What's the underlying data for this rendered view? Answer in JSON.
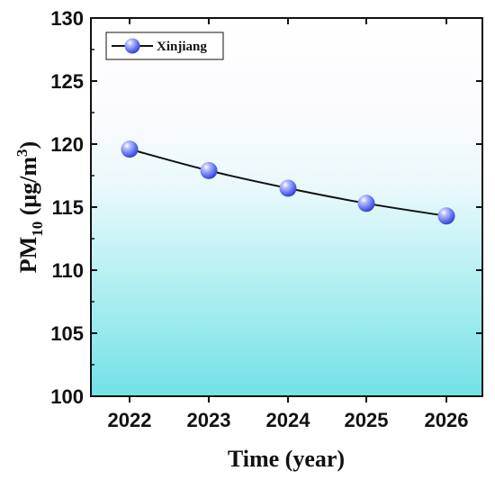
{
  "chart_data": {
    "type": "line",
    "x": [
      "2022",
      "2023",
      "2024",
      "2025",
      "2026"
    ],
    "series": [
      {
        "name": "Xinjiang",
        "values": [
          119.6,
          117.9,
          116.5,
          115.3,
          114.3
        ]
      }
    ],
    "xlabel": "Time (year)",
    "ylabel": {
      "main": "PM",
      "sub": "10",
      "unit_open": " (μg/m",
      "unit_sup": "3",
      "unit_close": ")"
    },
    "ylim": [
      100,
      130
    ],
    "yticks": [
      "100",
      "105",
      "110",
      "115",
      "120",
      "125",
      "130"
    ],
    "legend_position": "top-left",
    "grid": false,
    "colors": {
      "line": "#111111",
      "marker": "#5b6cf0",
      "background_top": "#ffffff",
      "background_bottom": "#72e2e6"
    }
  }
}
